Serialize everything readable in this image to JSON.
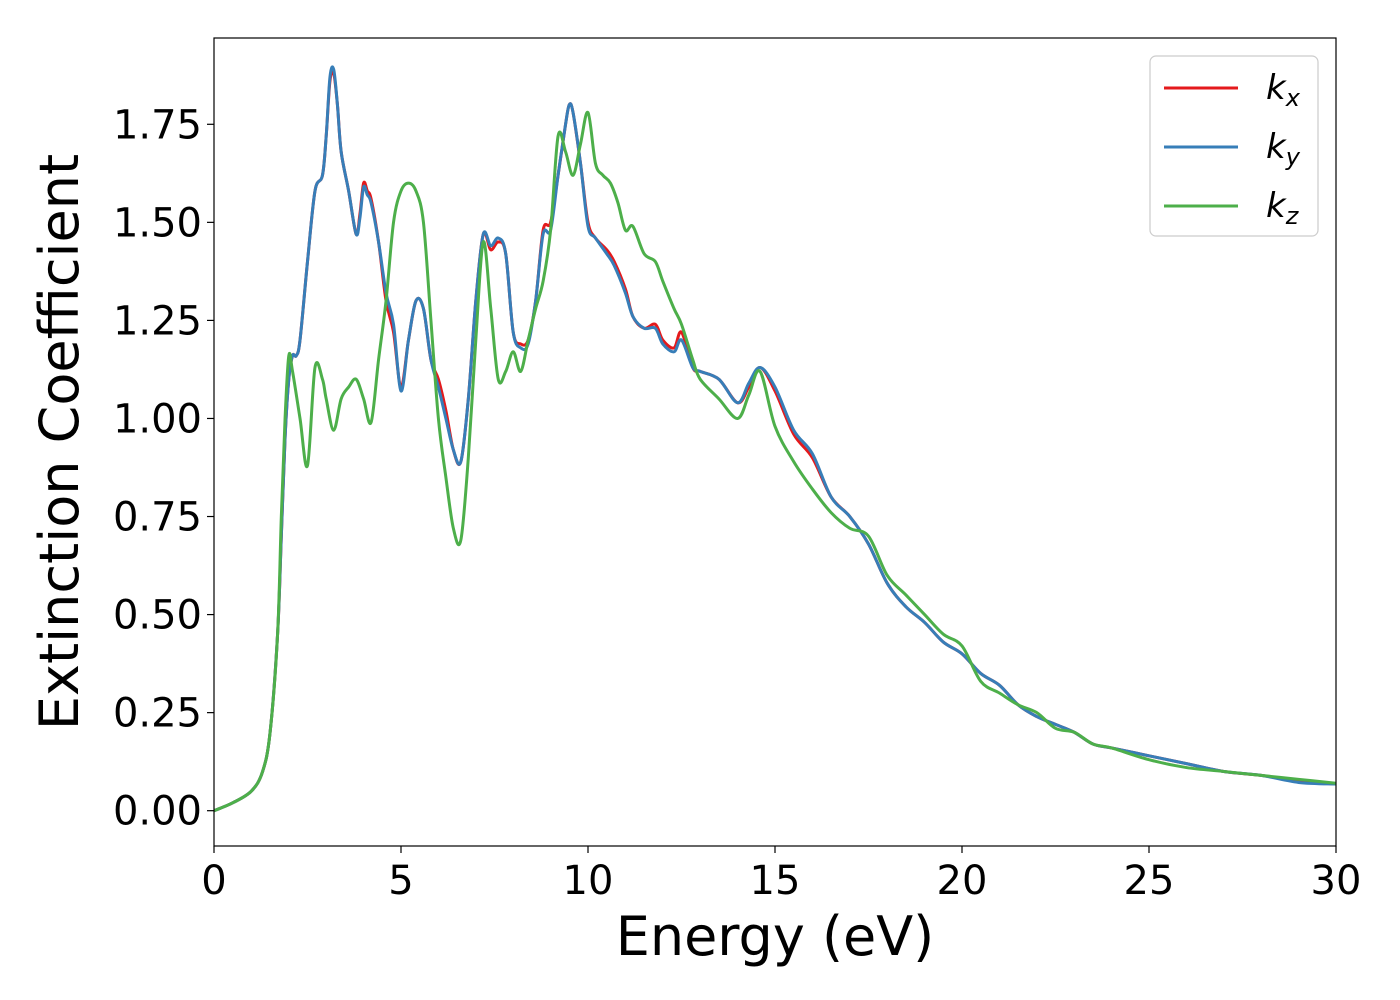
{
  "chart_data": {
    "type": "line",
    "title": "",
    "xlabel": "Energy (eV)",
    "ylabel": "Extinction Coefficient",
    "xlim": [
      0,
      30
    ],
    "ylim": [
      -0.09,
      1.97
    ],
    "xticks": [
      0,
      5,
      10,
      15,
      20,
      25,
      30
    ],
    "xtick_labels": [
      "0",
      "5",
      "10",
      "15",
      "20",
      "25",
      "30"
    ],
    "yticks": [
      0,
      0.25,
      0.5,
      0.75,
      1.0,
      1.25,
      1.5,
      1.75
    ],
    "ytick_labels": [
      "0.00",
      "0.25",
      "0.50",
      "0.75",
      "1.00",
      "1.25",
      "1.50",
      "1.75"
    ],
    "grid": false,
    "legend_position": "top-right",
    "series": [
      {
        "name": "k_x",
        "label_main": "k",
        "label_sub": "x",
        "color": "#e41a1c",
        "x": [
          0,
          0.5,
          1.0,
          1.3,
          1.5,
          1.7,
          1.8,
          1.9,
          2.0,
          2.1,
          2.2,
          2.3,
          2.5,
          2.7,
          2.9,
          3.0,
          3.1,
          3.2,
          3.3,
          3.4,
          3.6,
          3.8,
          3.9,
          4.0,
          4.1,
          4.2,
          4.4,
          4.6,
          4.8,
          5.0,
          5.2,
          5.4,
          5.6,
          5.8,
          6.0,
          6.2,
          6.4,
          6.6,
          6.8,
          7.0,
          7.2,
          7.4,
          7.6,
          7.8,
          8.0,
          8.2,
          8.4,
          8.6,
          8.8,
          9.0,
          9.2,
          9.4,
          9.5,
          9.6,
          9.8,
          10.0,
          10.2,
          10.5,
          10.7,
          11.0,
          11.2,
          11.5,
          11.8,
          12.0,
          12.3,
          12.5,
          12.8,
          13.0,
          13.5,
          14.0,
          14.3,
          14.6,
          15.0,
          15.5,
          16.0,
          16.5,
          17.0,
          17.5,
          18.0,
          18.5,
          19.0,
          19.5,
          20.0,
          20.5,
          21.0,
          21.5,
          22.0,
          22.5,
          23.0,
          23.5,
          24.0,
          25.0,
          26.0,
          27.0,
          28.0,
          29.0,
          30.0
        ],
        "y": [
          0.0,
          0.02,
          0.05,
          0.1,
          0.2,
          0.45,
          0.7,
          0.95,
          1.1,
          1.16,
          1.16,
          1.2,
          1.4,
          1.58,
          1.62,
          1.72,
          1.86,
          1.88,
          1.8,
          1.68,
          1.58,
          1.47,
          1.52,
          1.6,
          1.58,
          1.56,
          1.45,
          1.3,
          1.22,
          1.08,
          1.2,
          1.3,
          1.28,
          1.15,
          1.1,
          1.02,
          0.92,
          0.89,
          1.05,
          1.3,
          1.47,
          1.43,
          1.45,
          1.42,
          1.22,
          1.19,
          1.2,
          1.3,
          1.48,
          1.5,
          1.62,
          1.75,
          1.8,
          1.78,
          1.65,
          1.5,
          1.46,
          1.43,
          1.4,
          1.33,
          1.26,
          1.23,
          1.24,
          1.2,
          1.18,
          1.22,
          1.13,
          1.12,
          1.1,
          1.04,
          1.08,
          1.13,
          1.07,
          0.96,
          0.9,
          0.8,
          0.75,
          0.68,
          0.58,
          0.52,
          0.48,
          0.43,
          0.4,
          0.35,
          0.32,
          0.27,
          0.24,
          0.22,
          0.2,
          0.17,
          0.16,
          0.14,
          0.12,
          0.1,
          0.09,
          0.075,
          0.068
        ]
      },
      {
        "name": "k_y",
        "label_main": "k",
        "label_sub": "y",
        "color": "#377eb8",
        "x": [
          0,
          0.5,
          1.0,
          1.3,
          1.5,
          1.7,
          1.8,
          1.9,
          2.0,
          2.1,
          2.2,
          2.3,
          2.5,
          2.7,
          2.9,
          3.0,
          3.1,
          3.2,
          3.3,
          3.4,
          3.6,
          3.8,
          3.9,
          4.0,
          4.1,
          4.2,
          4.4,
          4.6,
          4.8,
          5.0,
          5.2,
          5.4,
          5.6,
          5.8,
          6.0,
          6.2,
          6.4,
          6.6,
          6.8,
          7.0,
          7.2,
          7.4,
          7.6,
          7.8,
          8.0,
          8.2,
          8.4,
          8.6,
          8.8,
          9.0,
          9.2,
          9.4,
          9.5,
          9.6,
          9.8,
          10.0,
          10.2,
          10.5,
          10.7,
          11.0,
          11.2,
          11.5,
          11.8,
          12.0,
          12.3,
          12.5,
          12.8,
          13.0,
          13.5,
          14.0,
          14.3,
          14.6,
          15.0,
          15.5,
          16.0,
          16.5,
          17.0,
          17.5,
          18.0,
          18.5,
          19.0,
          19.5,
          20.0,
          20.5,
          21.0,
          21.5,
          22.0,
          22.5,
          23.0,
          23.5,
          24.0,
          25.0,
          26.0,
          27.0,
          28.0,
          29.0,
          30.0
        ],
        "y": [
          0.0,
          0.02,
          0.05,
          0.1,
          0.2,
          0.45,
          0.7,
          0.95,
          1.1,
          1.16,
          1.16,
          1.2,
          1.4,
          1.58,
          1.62,
          1.72,
          1.87,
          1.89,
          1.8,
          1.68,
          1.58,
          1.47,
          1.51,
          1.59,
          1.57,
          1.55,
          1.45,
          1.32,
          1.24,
          1.07,
          1.2,
          1.3,
          1.28,
          1.15,
          1.08,
          1.0,
          0.92,
          0.89,
          1.05,
          1.3,
          1.47,
          1.44,
          1.46,
          1.42,
          1.22,
          1.18,
          1.19,
          1.3,
          1.47,
          1.48,
          1.62,
          1.75,
          1.8,
          1.78,
          1.65,
          1.49,
          1.46,
          1.42,
          1.39,
          1.32,
          1.26,
          1.23,
          1.23,
          1.19,
          1.17,
          1.2,
          1.13,
          1.12,
          1.1,
          1.04,
          1.09,
          1.13,
          1.08,
          0.97,
          0.91,
          0.8,
          0.75,
          0.68,
          0.58,
          0.52,
          0.48,
          0.43,
          0.4,
          0.35,
          0.32,
          0.27,
          0.24,
          0.22,
          0.2,
          0.17,
          0.16,
          0.14,
          0.12,
          0.1,
          0.09,
          0.072,
          0.068
        ]
      },
      {
        "name": "k_z",
        "label_main": "k",
        "label_sub": "z",
        "color": "#4daf4a",
        "x": [
          0,
          0.5,
          1.0,
          1.3,
          1.5,
          1.7,
          1.8,
          1.9,
          2.0,
          2.1,
          2.3,
          2.5,
          2.7,
          2.9,
          3.0,
          3.2,
          3.4,
          3.6,
          3.8,
          4.0,
          4.2,
          4.4,
          4.6,
          4.8,
          5.0,
          5.2,
          5.4,
          5.6,
          5.8,
          6.0,
          6.2,
          6.4,
          6.6,
          6.8,
          7.0,
          7.2,
          7.4,
          7.6,
          7.8,
          8.0,
          8.2,
          8.4,
          8.6,
          8.8,
          9.0,
          9.2,
          9.4,
          9.6,
          9.8,
          10.0,
          10.2,
          10.4,
          10.6,
          10.8,
          11.0,
          11.2,
          11.5,
          11.8,
          12.0,
          12.3,
          12.5,
          12.8,
          13.0,
          13.5,
          14.0,
          14.3,
          14.6,
          15.0,
          15.5,
          16.0,
          16.5,
          17.0,
          17.5,
          18.0,
          18.5,
          19.0,
          19.5,
          20.0,
          20.5,
          21.0,
          21.5,
          22.0,
          22.5,
          23.0,
          23.5,
          24.0,
          25.0,
          26.0,
          27.0,
          28.0,
          29.0,
          30.0
        ],
        "y": [
          0.0,
          0.02,
          0.05,
          0.1,
          0.2,
          0.45,
          0.75,
          1.0,
          1.16,
          1.12,
          1.0,
          0.88,
          1.13,
          1.1,
          1.05,
          0.97,
          1.05,
          1.08,
          1.1,
          1.05,
          0.99,
          1.15,
          1.3,
          1.5,
          1.58,
          1.6,
          1.58,
          1.5,
          1.25,
          1.0,
          0.85,
          0.72,
          0.69,
          0.9,
          1.2,
          1.45,
          1.28,
          1.1,
          1.12,
          1.17,
          1.12,
          1.2,
          1.28,
          1.35,
          1.48,
          1.72,
          1.68,
          1.62,
          1.7,
          1.78,
          1.65,
          1.62,
          1.6,
          1.55,
          1.48,
          1.49,
          1.42,
          1.4,
          1.35,
          1.28,
          1.24,
          1.15,
          1.1,
          1.05,
          1.0,
          1.06,
          1.12,
          0.98,
          0.89,
          0.82,
          0.76,
          0.72,
          0.7,
          0.6,
          0.55,
          0.5,
          0.45,
          0.42,
          0.33,
          0.3,
          0.27,
          0.25,
          0.21,
          0.2,
          0.17,
          0.16,
          0.13,
          0.11,
          0.1,
          0.09,
          0.08,
          0.07
        ]
      }
    ]
  }
}
